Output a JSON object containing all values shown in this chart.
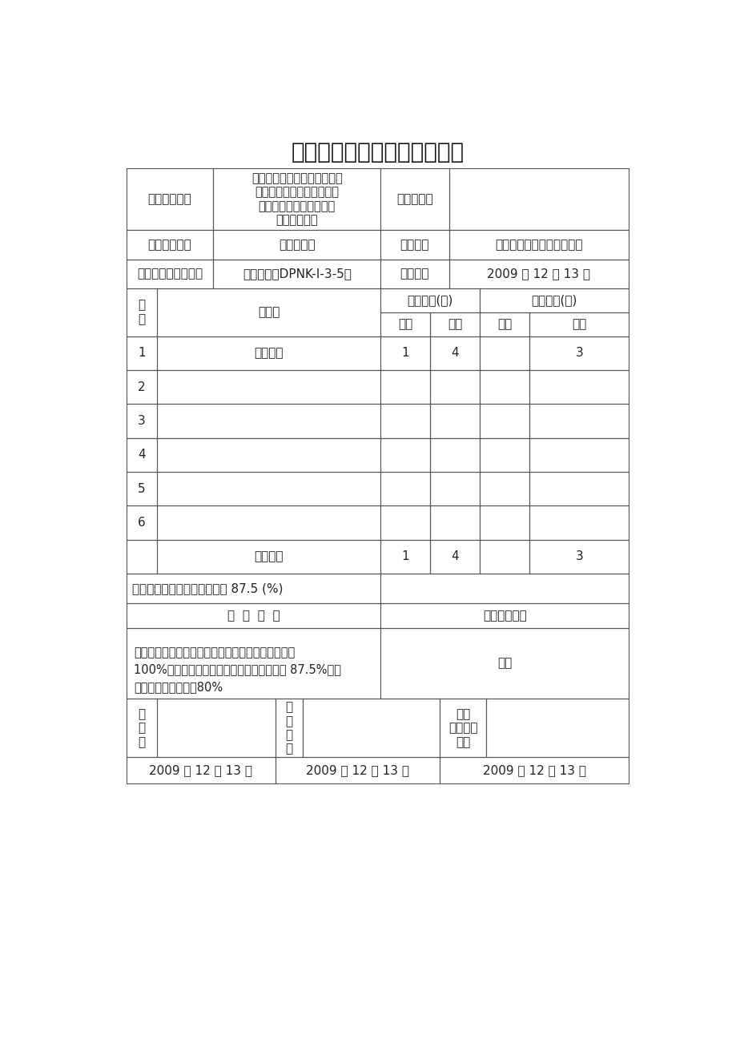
{
  "title": "土方回填单元工程质量评定表",
  "bg_color": "#ffffff",
  "line_color": "#555555",
  "title_fontsize": 20,
  "cell_fontsize": 11,
  "row1_content": {
    "col1": "单位工程名称",
    "col2": "东平县彭集镇、东平镇、沙河\n站镇及鑫源酒葡萄农民专业\n合作社中低产田改造工程\n（第三标段）",
    "col3": "单元工程量",
    "col4": ""
  },
  "row2": {
    "col1": "分部工程名称",
    "col2": "生产桥工程",
    "col3": "施工单位",
    "col4": "山东卓远建设工程有限公司"
  },
  "row3": {
    "col1": "单元工程名称、部位",
    "col2": "土方回填（DPNK-Ⅰ-3-5）",
    "col3": "检验日期",
    "col4": "2009 年 12 月 13 日"
  },
  "header_xiang_ci": "项\n次",
  "header_xiang_mu": "项　目",
  "header_main_title": "主要项目(个)",
  "header_gen_title": "一般项目(个)",
  "header_hege": "合格",
  "header_youliang": "优良",
  "data_rows": [
    {
      "idx": "1",
      "name": "土方回填",
      "mhg": "1",
      "myl": "4",
      "ghg": "",
      "gyl": "3"
    },
    {
      "idx": "2",
      "name": "",
      "mhg": "",
      "myl": "",
      "ghg": "",
      "gyl": ""
    },
    {
      "idx": "3",
      "name": "",
      "mhg": "",
      "myl": "",
      "ghg": "",
      "gyl": ""
    },
    {
      "idx": "4",
      "name": "",
      "mhg": "",
      "myl": "",
      "ghg": "",
      "gyl": ""
    },
    {
      "idx": "5",
      "name": "",
      "mhg": "",
      "myl": "",
      "ghg": "",
      "gyl": ""
    },
    {
      "idx": "6",
      "name": "",
      "mhg": "",
      "myl": "",
      "ghg": "",
      "gyl": ""
    }
  ],
  "total_label": "合　　计",
  "total_mhg": "1",
  "total_myl": "4",
  "total_ghg": "",
  "total_gyl": "3",
  "percent_text": "优良项目占全部项目的百分数 87.5 (%)",
  "opinion_label": "评  定  意  见",
  "quality_label": "工程质量等级",
  "opinion_text_line1": "主要项目全部符合质量标准。一般项目检验的实测点",
  "opinion_text_line2": "100%符合质量标准。优良项目占全部项目的 87.5%，其",
  "opinion_text_line3": "中主要项目优良率为80%",
  "quality_value": "合格",
  "sign_ce_liang": "测\n量\n人",
  "sign_shi_gong": "施\n工\n单\n位",
  "sign_jian_she": "建设\n（监理）\n单位",
  "date1": "2009 年 12 月 13 日",
  "date2": "2009 年 12 月 13 日",
  "date3": "2009 年 12 月 13 日"
}
